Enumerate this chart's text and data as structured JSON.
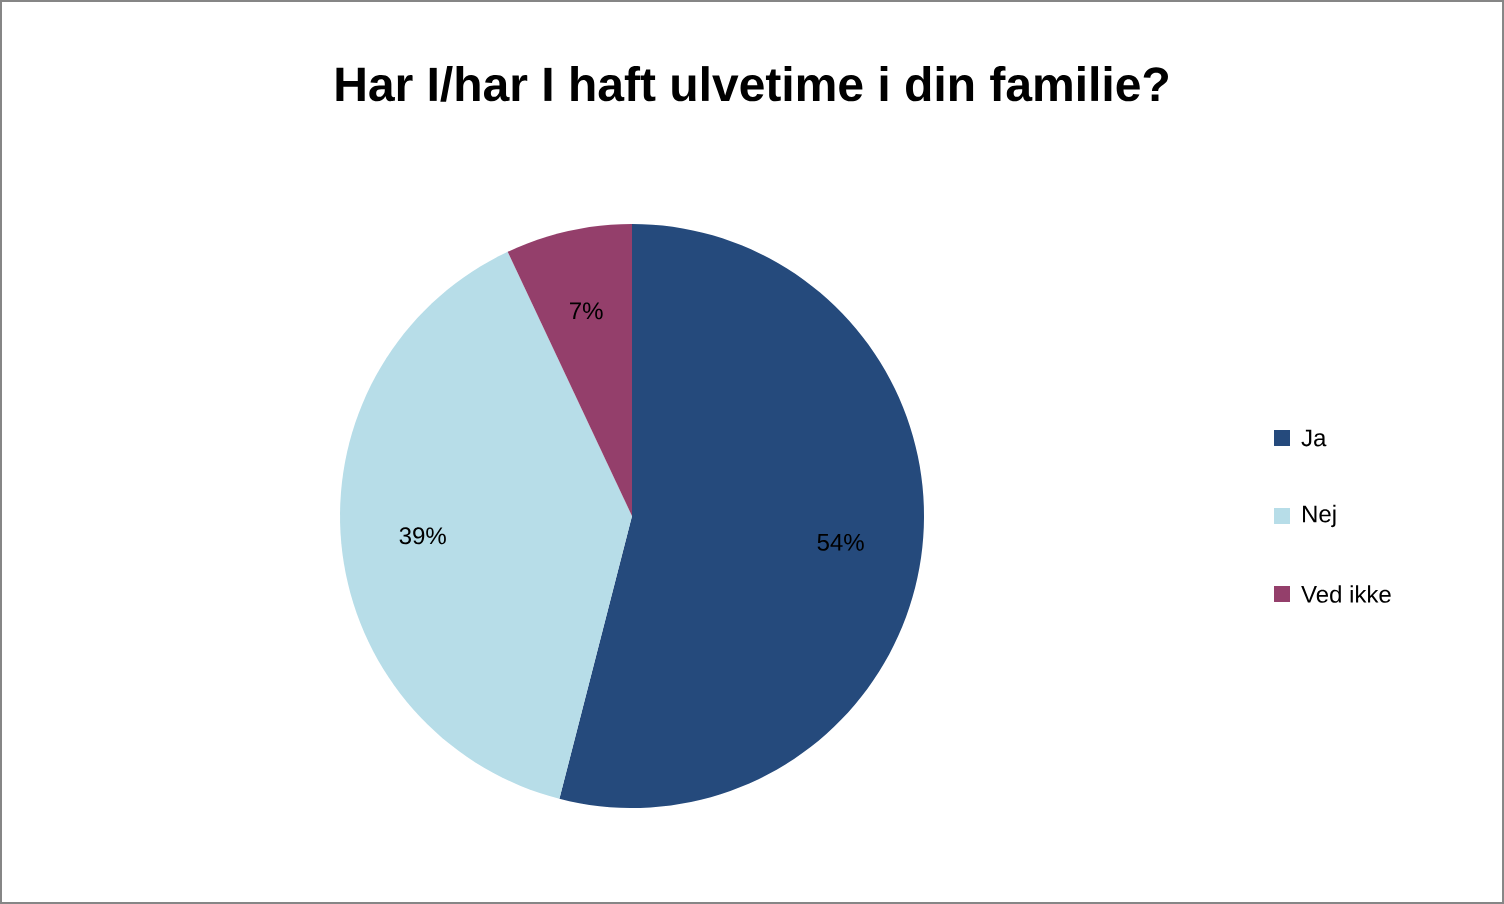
{
  "chart_data": {
    "type": "pie",
    "title": "Har I/har I haft ulvetime i din familie?",
    "categories": [
      "Ja",
      "Nej",
      "Ved ikke"
    ],
    "values": [
      54,
      39,
      7
    ],
    "value_labels": [
      "54%",
      "39%",
      "7%"
    ],
    "colors": [
      "#254a7c",
      "#b7dde8",
      "#943f6b"
    ],
    "legend": "right"
  }
}
